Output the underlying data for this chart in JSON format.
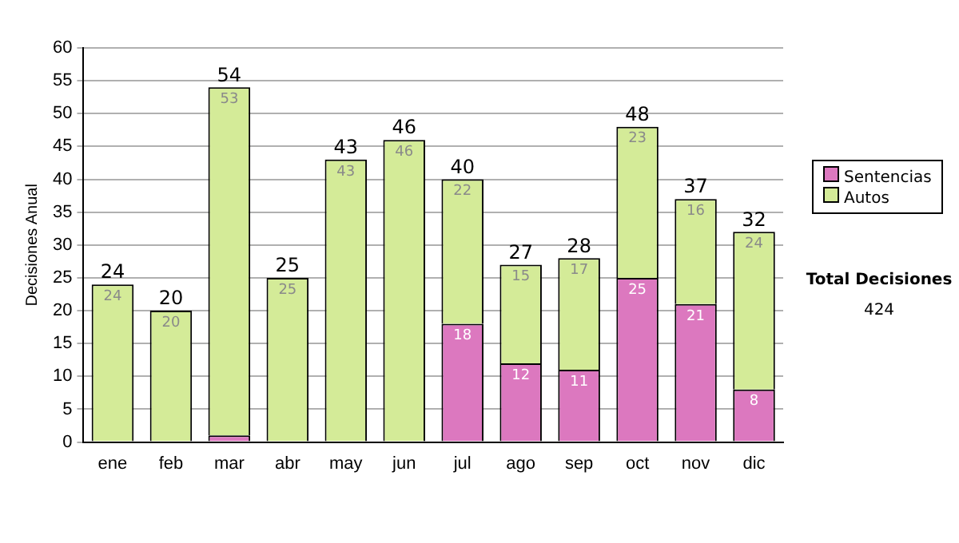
{
  "chart_data": {
    "type": "bar",
    "stacked": true,
    "ylabel": "Decisiones Anual",
    "categories": [
      "ene",
      "feb",
      "mar",
      "abr",
      "may",
      "jun",
      "jul",
      "ago",
      "sep",
      "oct",
      "nov",
      "dic"
    ],
    "series": [
      {
        "name": "Sentencias",
        "color": "#dc78bf",
        "values": [
          0,
          0,
          1,
          0,
          0,
          0,
          18,
          12,
          11,
          25,
          21,
          8
        ],
        "value_labels": [
          null,
          null,
          null,
          null,
          null,
          null,
          "18",
          "12",
          "11",
          "25",
          "21",
          "8"
        ]
      },
      {
        "name": "Autos",
        "color": "#d4eb98",
        "values": [
          24,
          20,
          53,
          25,
          43,
          46,
          22,
          15,
          17,
          23,
          16,
          24
        ],
        "value_labels": [
          "24",
          "20",
          "53",
          "25",
          "43",
          "46",
          "22",
          "15",
          "17",
          "23",
          "16",
          "24"
        ]
      }
    ],
    "totals": [
      "24",
      "20",
      "54",
      "25",
      "43",
      "46",
      "40",
      "27",
      "28",
      "48",
      "37",
      "32"
    ],
    "ylim": [
      0,
      60
    ],
    "yticks": [
      0,
      5,
      10,
      15,
      20,
      25,
      30,
      35,
      40,
      45,
      50,
      55,
      60
    ],
    "grid": "y",
    "legend": "right",
    "annotations": [
      "Total Decisiones",
      "424"
    ]
  }
}
